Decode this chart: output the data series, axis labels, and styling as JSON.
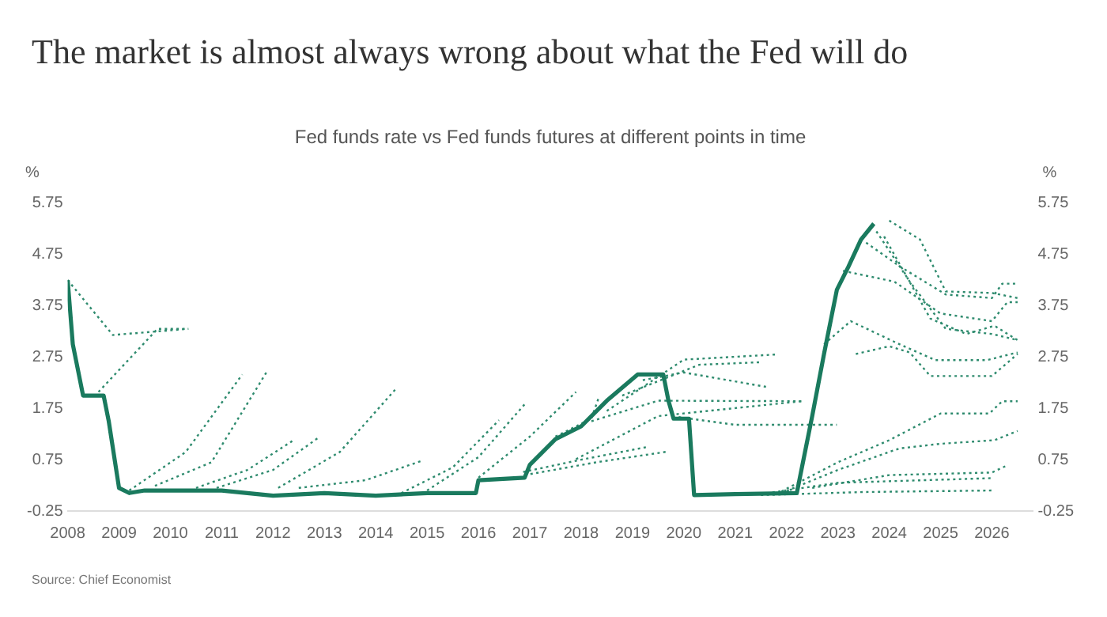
{
  "chart_data": {
    "type": "line",
    "title": "The market is almost always wrong about what the Fed will do",
    "subtitle": "Fed funds rate vs Fed funds futures at different points in time",
    "ylabel": "%",
    "y2label": "%",
    "annotations": [
      "Source: Chief Economist"
    ],
    "xlim": [
      2008,
      2026.8
    ],
    "xticks": [
      2008,
      2009,
      2010,
      2011,
      2012,
      2013,
      2014,
      2015,
      2016,
      2017,
      2018,
      2019,
      2020,
      2021,
      2022,
      2023,
      2024,
      2025,
      2026
    ],
    "ylim": [
      -0.25,
      5.75
    ],
    "yticks": [
      -0.25,
      0.75,
      1.75,
      2.75,
      3.75,
      4.75,
      5.75
    ],
    "y2lim": [
      -0.25,
      5.75
    ],
    "y2ticks": [
      -0.25,
      0.75,
      1.75,
      2.75,
      3.75,
      4.75,
      5.75
    ],
    "grid": false,
    "legend": false,
    "series": [
      {
        "color": "#2e8b6e",
        "line_style": "dotted",
        "x": [
          2008.0,
          2008.88,
          2010.35
        ],
        "values": [
          4.25,
          3.18,
          3.3
        ]
      },
      {
        "color": "#2e8b6e",
        "line_style": "dotted",
        "x": [
          2008.6,
          2009.75,
          2010.35
        ],
        "values": [
          2.07,
          3.3,
          3.3
        ]
      },
      {
        "color": "#2e8b6e",
        "line_style": "dotted",
        "x": [
          2009.2,
          2010.3,
          2011.4
        ],
        "values": [
          0.15,
          0.9,
          2.41
        ]
      },
      {
        "color": "#2e8b6e",
        "line_style": "dotted",
        "x": [
          2009.7,
          2010.8,
          2011.9
        ],
        "values": [
          0.24,
          0.7,
          2.5
        ]
      },
      {
        "color": "#2e8b6e",
        "line_style": "dotted",
        "x": [
          2010.5,
          2011.5,
          2012.4
        ],
        "values": [
          0.2,
          0.55,
          1.13
        ]
      },
      {
        "color": "#2e8b6e",
        "line_style": "dotted",
        "x": [
          2010.9,
          2012.0,
          2012.9
        ],
        "values": [
          0.2,
          0.55,
          1.19
        ]
      },
      {
        "color": "#2e8b6e",
        "line_style": "dotted",
        "x": [
          2012.1,
          2013.3,
          2014.4
        ],
        "values": [
          0.2,
          0.9,
          2.14
        ]
      },
      {
        "color": "#2e8b6e",
        "line_style": "dotted",
        "x": [
          2012.5,
          2013.8,
          2014.9
        ],
        "values": [
          0.2,
          0.35,
          0.73
        ]
      },
      {
        "color": "#2e8b6e",
        "line_style": "dotted",
        "x": [
          2014.5,
          2015.5,
          2016.4
        ],
        "values": [
          0.1,
          0.6,
          1.52
        ]
      },
      {
        "color": "#2e8b6e",
        "line_style": "dotted",
        "x": [
          2015.0,
          2016.0,
          2016.9
        ],
        "values": [
          0.15,
          0.8,
          1.83
        ]
      },
      {
        "color": "#2e8b6e",
        "line_style": "dotted",
        "x": [
          2016.0,
          2017.0,
          2017.9
        ],
        "values": [
          0.4,
          1.2,
          2.07
        ]
      },
      {
        "color": "#2e8b6e",
        "line_style": "dotted",
        "x": [
          2016.87,
          2018.0,
          2019.3
        ],
        "values": [
          0.51,
          0.75,
          1.0
        ]
      },
      {
        "color": "#2e8b6e",
        "line_style": "dotted",
        "x": [
          2016.9,
          2018.3,
          2019.7
        ],
        "values": [
          0.45,
          0.7,
          0.91
        ]
      },
      {
        "color": "#2e8b6e",
        "line_style": "dotted",
        "x": [
          2017.9,
          2019.5,
          2022.3
        ],
        "values": [
          0.76,
          1.6,
          1.89
        ]
      },
      {
        "color": "#2e8b6e",
        "line_style": "dotted",
        "x": [
          2018.5,
          2020.0,
          2021.8
        ],
        "values": [
          1.7,
          2.7,
          2.8
        ]
      },
      {
        "color": "#2e8b6e",
        "line_style": "dotted",
        "x": [
          2018.8,
          2020.3,
          2021.5
        ],
        "values": [
          2.0,
          2.6,
          2.65
        ]
      },
      {
        "color": "#2e8b6e",
        "line_style": "dotted",
        "x": [
          2019.2,
          2020.0,
          2021.6
        ],
        "values": [
          2.3,
          2.45,
          2.17
        ]
      },
      {
        "color": "#2e8b6e",
        "line_style": "dotted",
        "x": [
          2018.2,
          2019.5,
          2022.3
        ],
        "values": [
          1.5,
          1.9,
          1.89
        ]
      },
      {
        "color": "#2e8b6e",
        "line_style": "dotted",
        "x": [
          2019.9,
          2021.0,
          2022.98
        ],
        "values": [
          1.58,
          1.43,
          1.43
        ]
      },
      {
        "color": "#2e8b6e",
        "line_style": "dotted",
        "x": [
          2017.5,
          2018.2,
          2018.35
        ],
        "values": [
          1.2,
          1.55,
          1.98
        ]
      },
      {
        "color": "#2e8b6e",
        "line_style": "dotted",
        "x": [
          2021.9,
          2023.0,
          2024.2,
          2025.0,
          2026.05,
          2026.5
        ],
        "values": [
          0.1,
          0.55,
          0.97,
          1.06,
          1.13,
          1.31
        ]
      },
      {
        "color": "#2e8b6e",
        "line_style": "dotted",
        "x": [
          2021.8,
          2023.0,
          2024.0,
          2025.0,
          2025.95,
          2026.2,
          2026.5
        ],
        "values": [
          0.08,
          0.7,
          1.13,
          1.65,
          1.65,
          1.89,
          1.89
        ]
      },
      {
        "color": "#2e8b6e",
        "line_style": "dotted",
        "x": [
          2021.5,
          2023.0,
          2026.0
        ],
        "values": [
          0.08,
          0.3,
          0.39
        ]
      },
      {
        "color": "#2e8b6e",
        "line_style": "dotted",
        "x": [
          2021.5,
          2023.5,
          2026.0
        ],
        "values": [
          0.06,
          0.12,
          0.15
        ]
      },
      {
        "color": "#2e8b6e",
        "line_style": "dotted",
        "x": [
          2022.5,
          2024.0,
          2026.0,
          2026.3
        ],
        "values": [
          0.2,
          0.45,
          0.5,
          0.64
        ]
      },
      {
        "color": "#2e8b6e",
        "line_style": "dotted",
        "x": [
          2023.35,
          2024.0,
          2024.4,
          2024.8,
          2026.0,
          2026.5
        ],
        "values": [
          2.81,
          2.96,
          2.84,
          2.38,
          2.38,
          2.81
        ]
      },
      {
        "color": "#2e8b6e",
        "line_style": "dotted",
        "x": [
          2022.73,
          2023.25,
          2024.2,
          2024.9,
          2025.9,
          2026.5
        ],
        "values": [
          3.0,
          3.45,
          3.0,
          2.69,
          2.69,
          2.84
        ]
      },
      {
        "color": "#2e8b6e",
        "line_style": "dotted",
        "x": [
          2023.1,
          2024.1,
          2025.0,
          2026.0,
          2026.3,
          2026.5
        ],
        "values": [
          4.43,
          4.22,
          3.6,
          3.45,
          3.82,
          3.82
        ]
      },
      {
        "color": "#2e8b6e",
        "line_style": "dotted",
        "x": [
          2023.55,
          2024.2,
          2025.1,
          2026.0,
          2026.2,
          2026.5
        ],
        "values": [
          4.98,
          4.52,
          3.97,
          3.9,
          4.18,
          4.18
        ]
      },
      {
        "color": "#2e8b6e",
        "line_style": "dotted",
        "x": [
          2024.0,
          2024.6,
          2025.1,
          2026.0,
          2026.5
        ],
        "values": [
          5.41,
          5.04,
          4.03,
          4.0,
          3.9
        ]
      },
      {
        "color": "#2e8b6e",
        "line_style": "dotted",
        "x": [
          2023.75,
          2024.4,
          2025.1,
          2026.0,
          2026.5
        ],
        "values": [
          5.2,
          4.22,
          3.3,
          3.2,
          3.08
        ]
      },
      {
        "color": "#2e8b6e",
        "line_style": "dotted",
        "x": [
          2023.9,
          2024.8,
          2025.5,
          2026.05,
          2026.5
        ],
        "values": [
          5.1,
          3.5,
          3.2,
          3.36,
          3.08
        ]
      },
      {
        "color": "#1a7a5e",
        "line_style": "solid",
        "x": [
          2008.0,
          2008.1,
          2008.3,
          2008.7,
          2008.8,
          2009.0,
          2009.2,
          2009.5,
          2010.0,
          2011.0,
          2011.5,
          2012.0,
          2013.0,
          2014.0,
          2015.0,
          2015.95,
          2016.0,
          2016.9,
          2017.0,
          2017.5,
          2018.0,
          2018.5,
          2019.1,
          2019.6,
          2019.7,
          2019.8,
          2020.1,
          2020.2,
          2021.0,
          2022.2,
          2022.5,
          2022.73,
          2022.98,
          2023.2,
          2023.45,
          2023.7
        ],
        "values": [
          4.25,
          3.0,
          2.0,
          2.0,
          1.5,
          0.2,
          0.1,
          0.15,
          0.15,
          0.15,
          0.1,
          0.05,
          0.1,
          0.05,
          0.1,
          0.1,
          0.35,
          0.4,
          0.65,
          1.15,
          1.4,
          1.9,
          2.41,
          2.41,
          1.9,
          1.55,
          1.55,
          0.06,
          0.08,
          0.1,
          1.6,
          2.81,
          4.06,
          4.5,
          5.04,
          5.35
        ]
      }
    ]
  }
}
